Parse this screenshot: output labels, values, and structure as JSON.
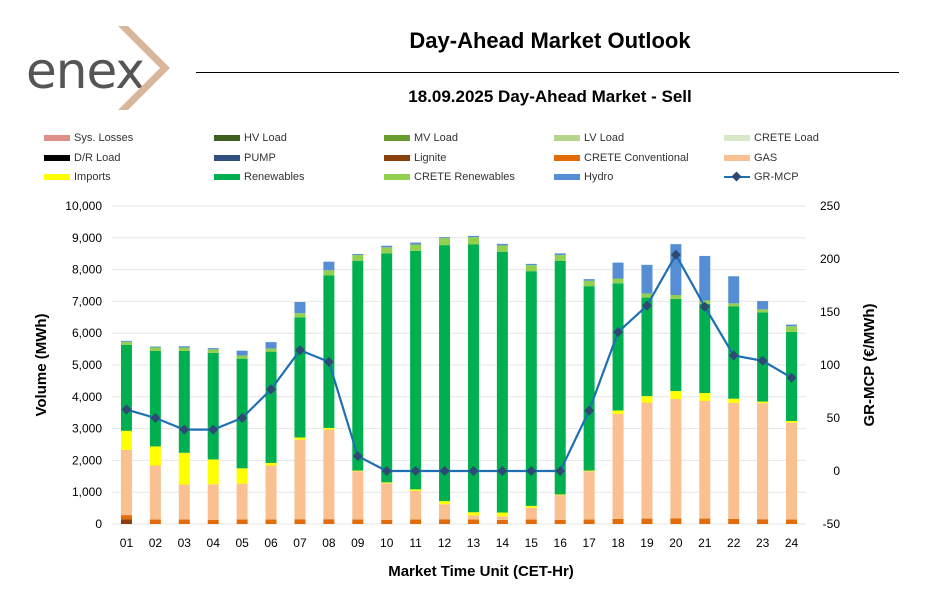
{
  "header": {
    "logo_text": "enex",
    "title": "Day-Ahead Market Outlook",
    "subtitle": "18.09.2025  Day-Ahead Market - Sell"
  },
  "legend": [
    {
      "label": "Sys. Losses",
      "color": "#e0908a",
      "kind": "bar"
    },
    {
      "label": "HV Load",
      "color": "#3f5f1f",
      "kind": "bar"
    },
    {
      "label": "MV Load",
      "color": "#6a9b2f",
      "kind": "bar"
    },
    {
      "label": "LV Load",
      "color": "#b6d78b",
      "kind": "bar"
    },
    {
      "label": "CRETE Load",
      "color": "#d6e8c6",
      "kind": "bar"
    },
    {
      "label": "D/R Load",
      "color": "#000000",
      "kind": "bar"
    },
    {
      "label": "PUMP",
      "color": "#2f4f7f",
      "kind": "bar"
    },
    {
      "label": "Lignite",
      "color": "#8b3f0a",
      "kind": "bar"
    },
    {
      "label": "CRETE Conventional",
      "color": "#e36c0a",
      "kind": "bar"
    },
    {
      "label": "GAS",
      "color": "#fac08f",
      "kind": "bar"
    },
    {
      "label": "Imports",
      "color": "#ffff00",
      "kind": "bar"
    },
    {
      "label": "Renewables",
      "color": "#00b050",
      "kind": "bar"
    },
    {
      "label": "CRETE Renewables",
      "color": "#92d050",
      "kind": "bar"
    },
    {
      "label": "Hydro",
      "color": "#558ed5",
      "kind": "bar"
    },
    {
      "label": "GR-MCP",
      "color": "#1f6fb2",
      "kind": "line"
    }
  ],
  "chart_data": {
    "type": "bar",
    "stacked": true,
    "title": "18.09.2025  Day-Ahead Market - Sell",
    "xlabel": "Market Time Unit (CET-Hr)",
    "ylabel": "Volume (MWh)",
    "y2label": "GR-MCP (€/MWh)",
    "ylim": [
      0,
      10000
    ],
    "y2lim": [
      -50,
      250
    ],
    "yticks": [
      "0",
      "1,000",
      "2,000",
      "3,000",
      "4,000",
      "5,000",
      "6,000",
      "7,000",
      "8,000",
      "9,000",
      "10,000"
    ],
    "y2ticks": [
      "-50",
      "0",
      "50",
      "100",
      "150",
      "200",
      "250"
    ],
    "categories": [
      "01",
      "02",
      "03",
      "04",
      "05",
      "06",
      "07",
      "08",
      "09",
      "10",
      "11",
      "12",
      "13",
      "14",
      "15",
      "16",
      "17",
      "18",
      "19",
      "20",
      "21",
      "22",
      "23",
      "24"
    ],
    "series": [
      {
        "name": "Lignite",
        "color": "#8b3f0a",
        "values": [
          150,
          0,
          0,
          0,
          0,
          0,
          0,
          0,
          0,
          0,
          0,
          0,
          0,
          0,
          0,
          0,
          0,
          0,
          0,
          0,
          0,
          0,
          0,
          0
        ]
      },
      {
        "name": "CRETE Conventional",
        "color": "#e36c0a",
        "values": [
          130,
          140,
          140,
          130,
          140,
          140,
          150,
          150,
          140,
          130,
          140,
          150,
          140,
          130,
          140,
          130,
          140,
          160,
          170,
          180,
          170,
          160,
          150,
          140
        ]
      },
      {
        "name": "GAS",
        "color": "#fac08f",
        "values": [
          2050,
          1700,
          1100,
          1120,
          1130,
          1700,
          2500,
          2820,
          1520,
          1150,
          900,
          470,
          130,
          110,
          370,
          780,
          1520,
          3300,
          3650,
          3750,
          3700,
          3650,
          3650,
          3050
        ]
      },
      {
        "name": "Imports",
        "color": "#ffff00",
        "values": [
          600,
          600,
          1000,
          780,
          480,
          80,
          70,
          50,
          20,
          30,
          50,
          100,
          100,
          120,
          60,
          20,
          20,
          110,
          200,
          250,
          250,
          130,
          50,
          50
        ]
      },
      {
        "name": "Renewables",
        "color": "#00b050",
        "values": [
          2700,
          3000,
          3200,
          3350,
          3450,
          3500,
          3780,
          4800,
          6600,
          7200,
          7500,
          8050,
          8420,
          8200,
          7380,
          7350,
          5800,
          4000,
          3100,
          2900,
          2800,
          2900,
          2800,
          2800
        ]
      },
      {
        "name": "CRETE Renewables",
        "color": "#92d050",
        "values": [
          100,
          110,
          110,
          110,
          100,
          100,
          130,
          160,
          180,
          190,
          200,
          220,
          230,
          200,
          190,
          180,
          170,
          150,
          130,
          120,
          110,
          100,
          100,
          180
        ]
      },
      {
        "name": "Hydro",
        "color": "#558ed5",
        "values": [
          30,
          30,
          40,
          40,
          150,
          200,
          350,
          270,
          30,
          50,
          60,
          30,
          40,
          50,
          40,
          50,
          50,
          500,
          900,
          1600,
          1400,
          850,
          260,
          50
        ]
      }
    ],
    "line": {
      "name": "GR-MCP",
      "color": "#1f6fb2",
      "axis": "right",
      "values": [
        58,
        50,
        39,
        39,
        50,
        77,
        114,
        103,
        14,
        0,
        0,
        0,
        0,
        0,
        0,
        0,
        57,
        131,
        156,
        204,
        155,
        109,
        104,
        88
      ]
    }
  }
}
